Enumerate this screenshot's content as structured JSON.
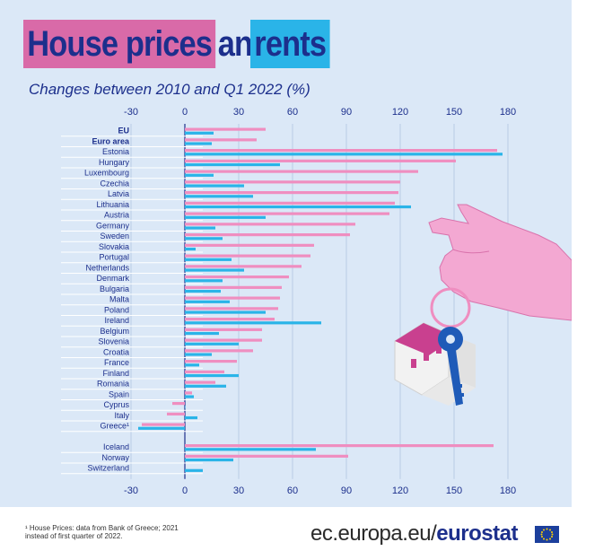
{
  "title": {
    "part1": "House prices",
    "part2": "and",
    "part3": "rents"
  },
  "subtitle": "Changes between 2010 and Q1 2022 (%)",
  "footnote": {
    "line1": "¹ House Prices: data from Bank of Greece; 2021",
    "line2": "instead of first quarter of 2022."
  },
  "brand": {
    "prefix": "ec.europa.eu/",
    "name": "eurostat"
  },
  "colors": {
    "house_prices": "#ef8ec0",
    "rents": "#2ab4e8",
    "panel": "#dbe8f7",
    "title_text": "#1c2f8c"
  },
  "chart_data": {
    "type": "bar",
    "orientation": "horizontal",
    "xlim": [
      -30,
      180
    ],
    "xticks": [
      "-30",
      "0",
      "30",
      "60",
      "90",
      "120",
      "150",
      "180"
    ],
    "categories": [
      "EU",
      "Euro area",
      "Estonia",
      "Hungary",
      "Luxembourg",
      "Czechia",
      "Latvia",
      "Lithuania",
      "Austria",
      "Germany",
      "Sweden",
      "Slovakia",
      "Portugal",
      "Netherlands",
      "Denmark",
      "Bulgaria",
      "Malta",
      "Poland",
      "Ireland",
      "Belgium",
      "Slovenia",
      "Croatia",
      "France",
      "Finland",
      "Romania",
      "Spain",
      "Cyprus",
      "Italy",
      "Greece¹",
      "",
      "Iceland",
      "Norway",
      "Switzerland"
    ],
    "bold_categories": [
      "EU",
      "Euro area"
    ],
    "series": [
      {
        "key": "house_prices",
        "values": [
          45,
          40,
          174,
          151,
          130,
          120,
          119,
          117,
          114,
          95,
          92,
          72,
          70,
          65,
          58,
          54,
          53,
          52,
          50,
          43,
          43,
          38,
          29,
          22,
          17,
          4,
          -7,
          -10,
          -24,
          null,
          172,
          91,
          null
        ]
      },
      {
        "key": "rents",
        "values": [
          16,
          15,
          177,
          53,
          16,
          33,
          38,
          126,
          45,
          17,
          21,
          6,
          26,
          33,
          21,
          20,
          25,
          45,
          76,
          19,
          30,
          15,
          8,
          30,
          23,
          5,
          0,
          7,
          -26,
          null,
          73,
          27,
          10
        ]
      }
    ]
  }
}
